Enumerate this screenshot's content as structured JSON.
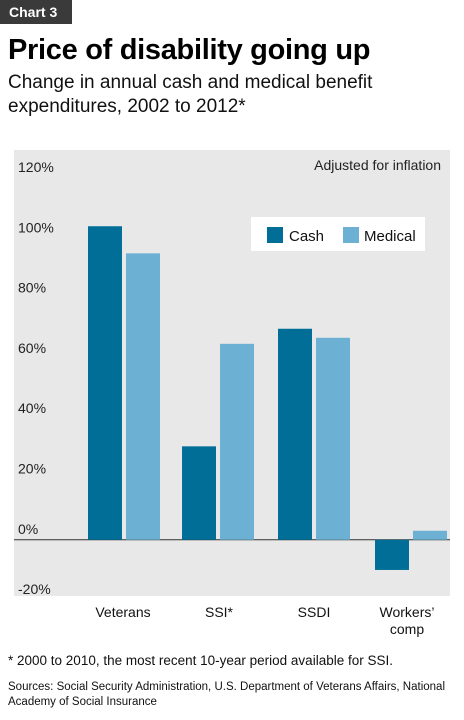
{
  "tag": "Chart 3",
  "title": "Price of disability going up",
  "subtitle": "Change in annual cash and medical benefit expenditures, 2002 to 2012*",
  "footnote": "* 2000 to 2010, the most recent 10-year period available for SSI.",
  "sources": "Sources: Social Security Administration, U.S. Department of Veterans Affairs, National Academy of Social Insurance",
  "colors": {
    "cash": "#006e96",
    "medical": "#6cb0d3",
    "plot_bg": "#e8e8e8"
  },
  "chart_data": {
    "type": "bar",
    "annotation": "Adjusted for inflation",
    "categories": [
      "Veterans",
      "SSI*",
      "SSDI",
      "Workers’ comp"
    ],
    "series": [
      {
        "name": "Cash",
        "values": [
          104,
          31,
          70,
          -10
        ]
      },
      {
        "name": "Medical",
        "values": [
          95,
          65,
          67,
          3
        ]
      }
    ],
    "ylim": [
      -20,
      120
    ],
    "yticks": [
      -20,
      0,
      20,
      40,
      60,
      80,
      100,
      120
    ],
    "ytick_labels": [
      "-20%",
      "0%",
      "20%",
      "40%",
      "60%",
      "80%",
      "100%",
      "120%"
    ],
    "xlabel": "",
    "ylabel": "",
    "grid": false,
    "legend_position": "top-right"
  }
}
